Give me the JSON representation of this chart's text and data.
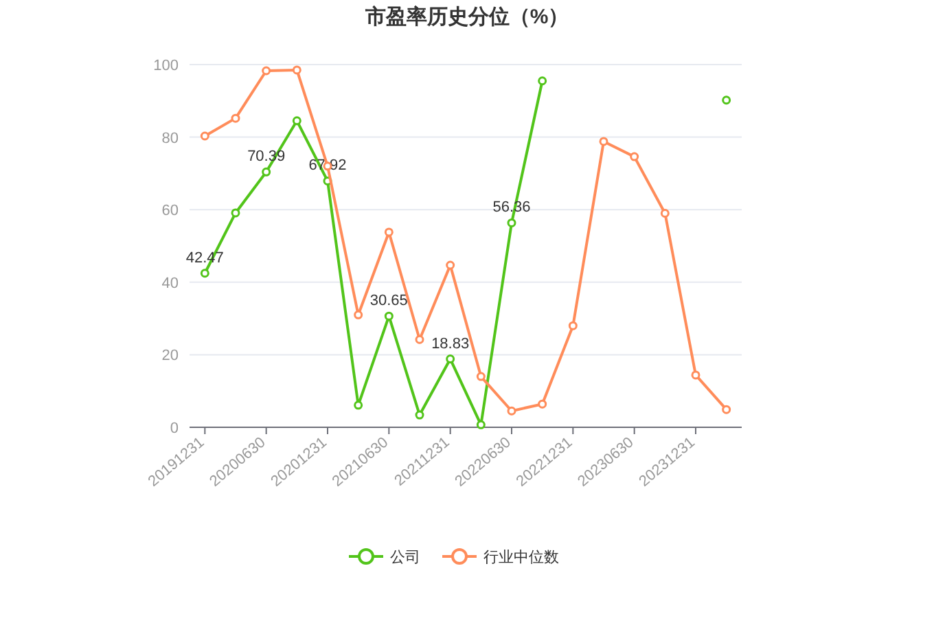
{
  "chart_data": {
    "type": "line",
    "title": "市盈率历史分位（%）",
    "categories": [
      "20191231",
      null,
      "20200630",
      null,
      "20201231",
      null,
      "20210630",
      null,
      "20211231",
      null,
      "20220630",
      null,
      "20221231",
      null,
      "20230630",
      null,
      "20231231",
      null
    ],
    "series": [
      {
        "name": "公司",
        "color": "#52c41a",
        "values": [
          42.47,
          59.1,
          70.39,
          84.5,
          67.92,
          6.1,
          30.65,
          3.4,
          18.83,
          0.7,
          56.36,
          95.5,
          null,
          null,
          null,
          null,
          null,
          90.2
        ],
        "value_labels": [
          "42.47",
          null,
          "70.39",
          null,
          "67.92",
          null,
          "30.65",
          null,
          "18.83",
          null,
          "56.36",
          null,
          null,
          null,
          null,
          null,
          null,
          null
        ]
      },
      {
        "name": "行业中位数",
        "color": "#ff8c5a",
        "values": [
          80.3,
          85.2,
          98.3,
          98.5,
          72,
          31,
          53.8,
          24.2,
          44.7,
          14,
          4.5,
          6.4,
          28,
          78.8,
          74.6,
          59,
          14.4,
          4.9
        ]
      }
    ],
    "ylim": [
      0,
      100
    ],
    "yticks": [
      0,
      20,
      40,
      60,
      80,
      100
    ],
    "grid": "y",
    "legend": "bottom",
    "marker": "circle",
    "line_style": "solid"
  }
}
